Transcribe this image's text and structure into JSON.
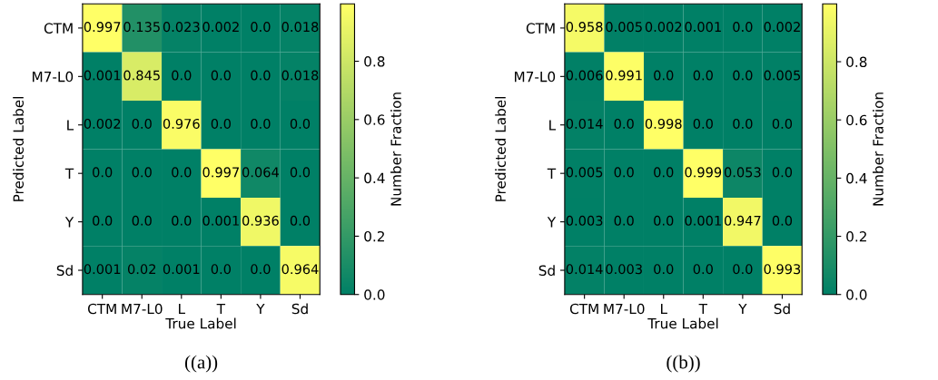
{
  "chart_data": [
    {
      "type": "heatmap",
      "xlabel": "True Label",
      "ylabel": "Predicted Label",
      "clabel": "Number Fraction",
      "categories": [
        "CTM",
        "M7-L0",
        "L",
        "T",
        "Y",
        "Sd"
      ],
      "y_categories": [
        "CTM",
        "M7-L0",
        "L",
        "T",
        "Y",
        "Sd"
      ],
      "cells": [
        [
          0.997,
          0.135,
          0.023,
          0.002,
          0,
          0.018
        ],
        [
          0.001,
          0.845,
          0,
          0,
          0,
          0.018
        ],
        [
          0.002,
          0,
          0.976,
          0,
          0,
          0
        ],
        [
          0,
          0,
          0,
          0.997,
          0.064,
          0
        ],
        [
          0,
          0,
          0,
          0.001,
          0.936,
          0
        ],
        [
          0.001,
          0.02,
          0.001,
          0,
          0,
          0.964
        ]
      ],
      "cell_labels": [
        [
          "0.997",
          "0.135",
          "0.023",
          "0.002",
          "0.0",
          "0.018"
        ],
        [
          "0.001",
          "0.845",
          "0.0",
          "0.0",
          "0.0",
          "0.018"
        ],
        [
          "0.002",
          "0.0",
          "0.976",
          "0.0",
          "0.0",
          "0.0"
        ],
        [
          "0.0",
          "0.0",
          "0.0",
          "0.997",
          "0.064",
          "0.0"
        ],
        [
          "0.0",
          "0.0",
          "0.0",
          "0.001",
          "0.936",
          "0.0"
        ],
        [
          "0.001",
          "0.02",
          "0.001",
          "0.0",
          "0.0",
          "0.964"
        ]
      ],
      "clim": [
        0,
        0.997
      ],
      "cticks": [
        {
          "value": 0,
          "label": "0.0"
        },
        0.2,
        0.4,
        0.6,
        0.8
      ],
      "annotations": [
        "((a))"
      ]
    },
    {
      "type": "heatmap",
      "xlabel": "True Label",
      "ylabel": "Predicted Label",
      "clabel": "Number Fraction",
      "categories": [
        "CTM",
        "M7-L0",
        "L",
        "T",
        "Y",
        "Sd"
      ],
      "y_categories": [
        "CTM",
        "M7-L0",
        "L",
        "T",
        "Y",
        "Sd"
      ],
      "cells": [
        [
          0.958,
          0.005,
          0.002,
          0.001,
          0,
          0.002
        ],
        [
          0.006,
          0.991,
          0,
          0,
          0,
          0.005
        ],
        [
          0.014,
          0,
          0.998,
          0,
          0,
          0
        ],
        [
          0.005,
          0,
          0,
          0.999,
          0.053,
          0
        ],
        [
          0.003,
          0,
          0,
          0.001,
          0.947,
          0
        ],
        [
          0.014,
          0.003,
          0,
          0,
          0,
          0.993
        ]
      ],
      "cell_labels": [
        [
          "0.958",
          "0.005",
          "0.002",
          "0.001",
          "0.0",
          "0.002"
        ],
        [
          "0.006",
          "0.991",
          "0.0",
          "0.0",
          "0.0",
          "0.005"
        ],
        [
          "0.014",
          "0.0",
          "0.998",
          "0.0",
          "0.0",
          "0.0"
        ],
        [
          "0.005",
          "0.0",
          "0.0",
          "0.999",
          "0.053",
          "0.0"
        ],
        [
          "0.003",
          "0.0",
          "0.0",
          "0.001",
          "0.947",
          "0.0"
        ],
        [
          "0.014",
          "0.003",
          "0.0",
          "0.0",
          "0.0",
          "0.993"
        ]
      ],
      "clim": [
        0,
        0.999
      ],
      "cticks": [
        {
          "value": 0,
          "label": "0.0"
        },
        0.2,
        0.4,
        0.6,
        0.8
      ],
      "annotations": [
        "((b))"
      ]
    }
  ]
}
